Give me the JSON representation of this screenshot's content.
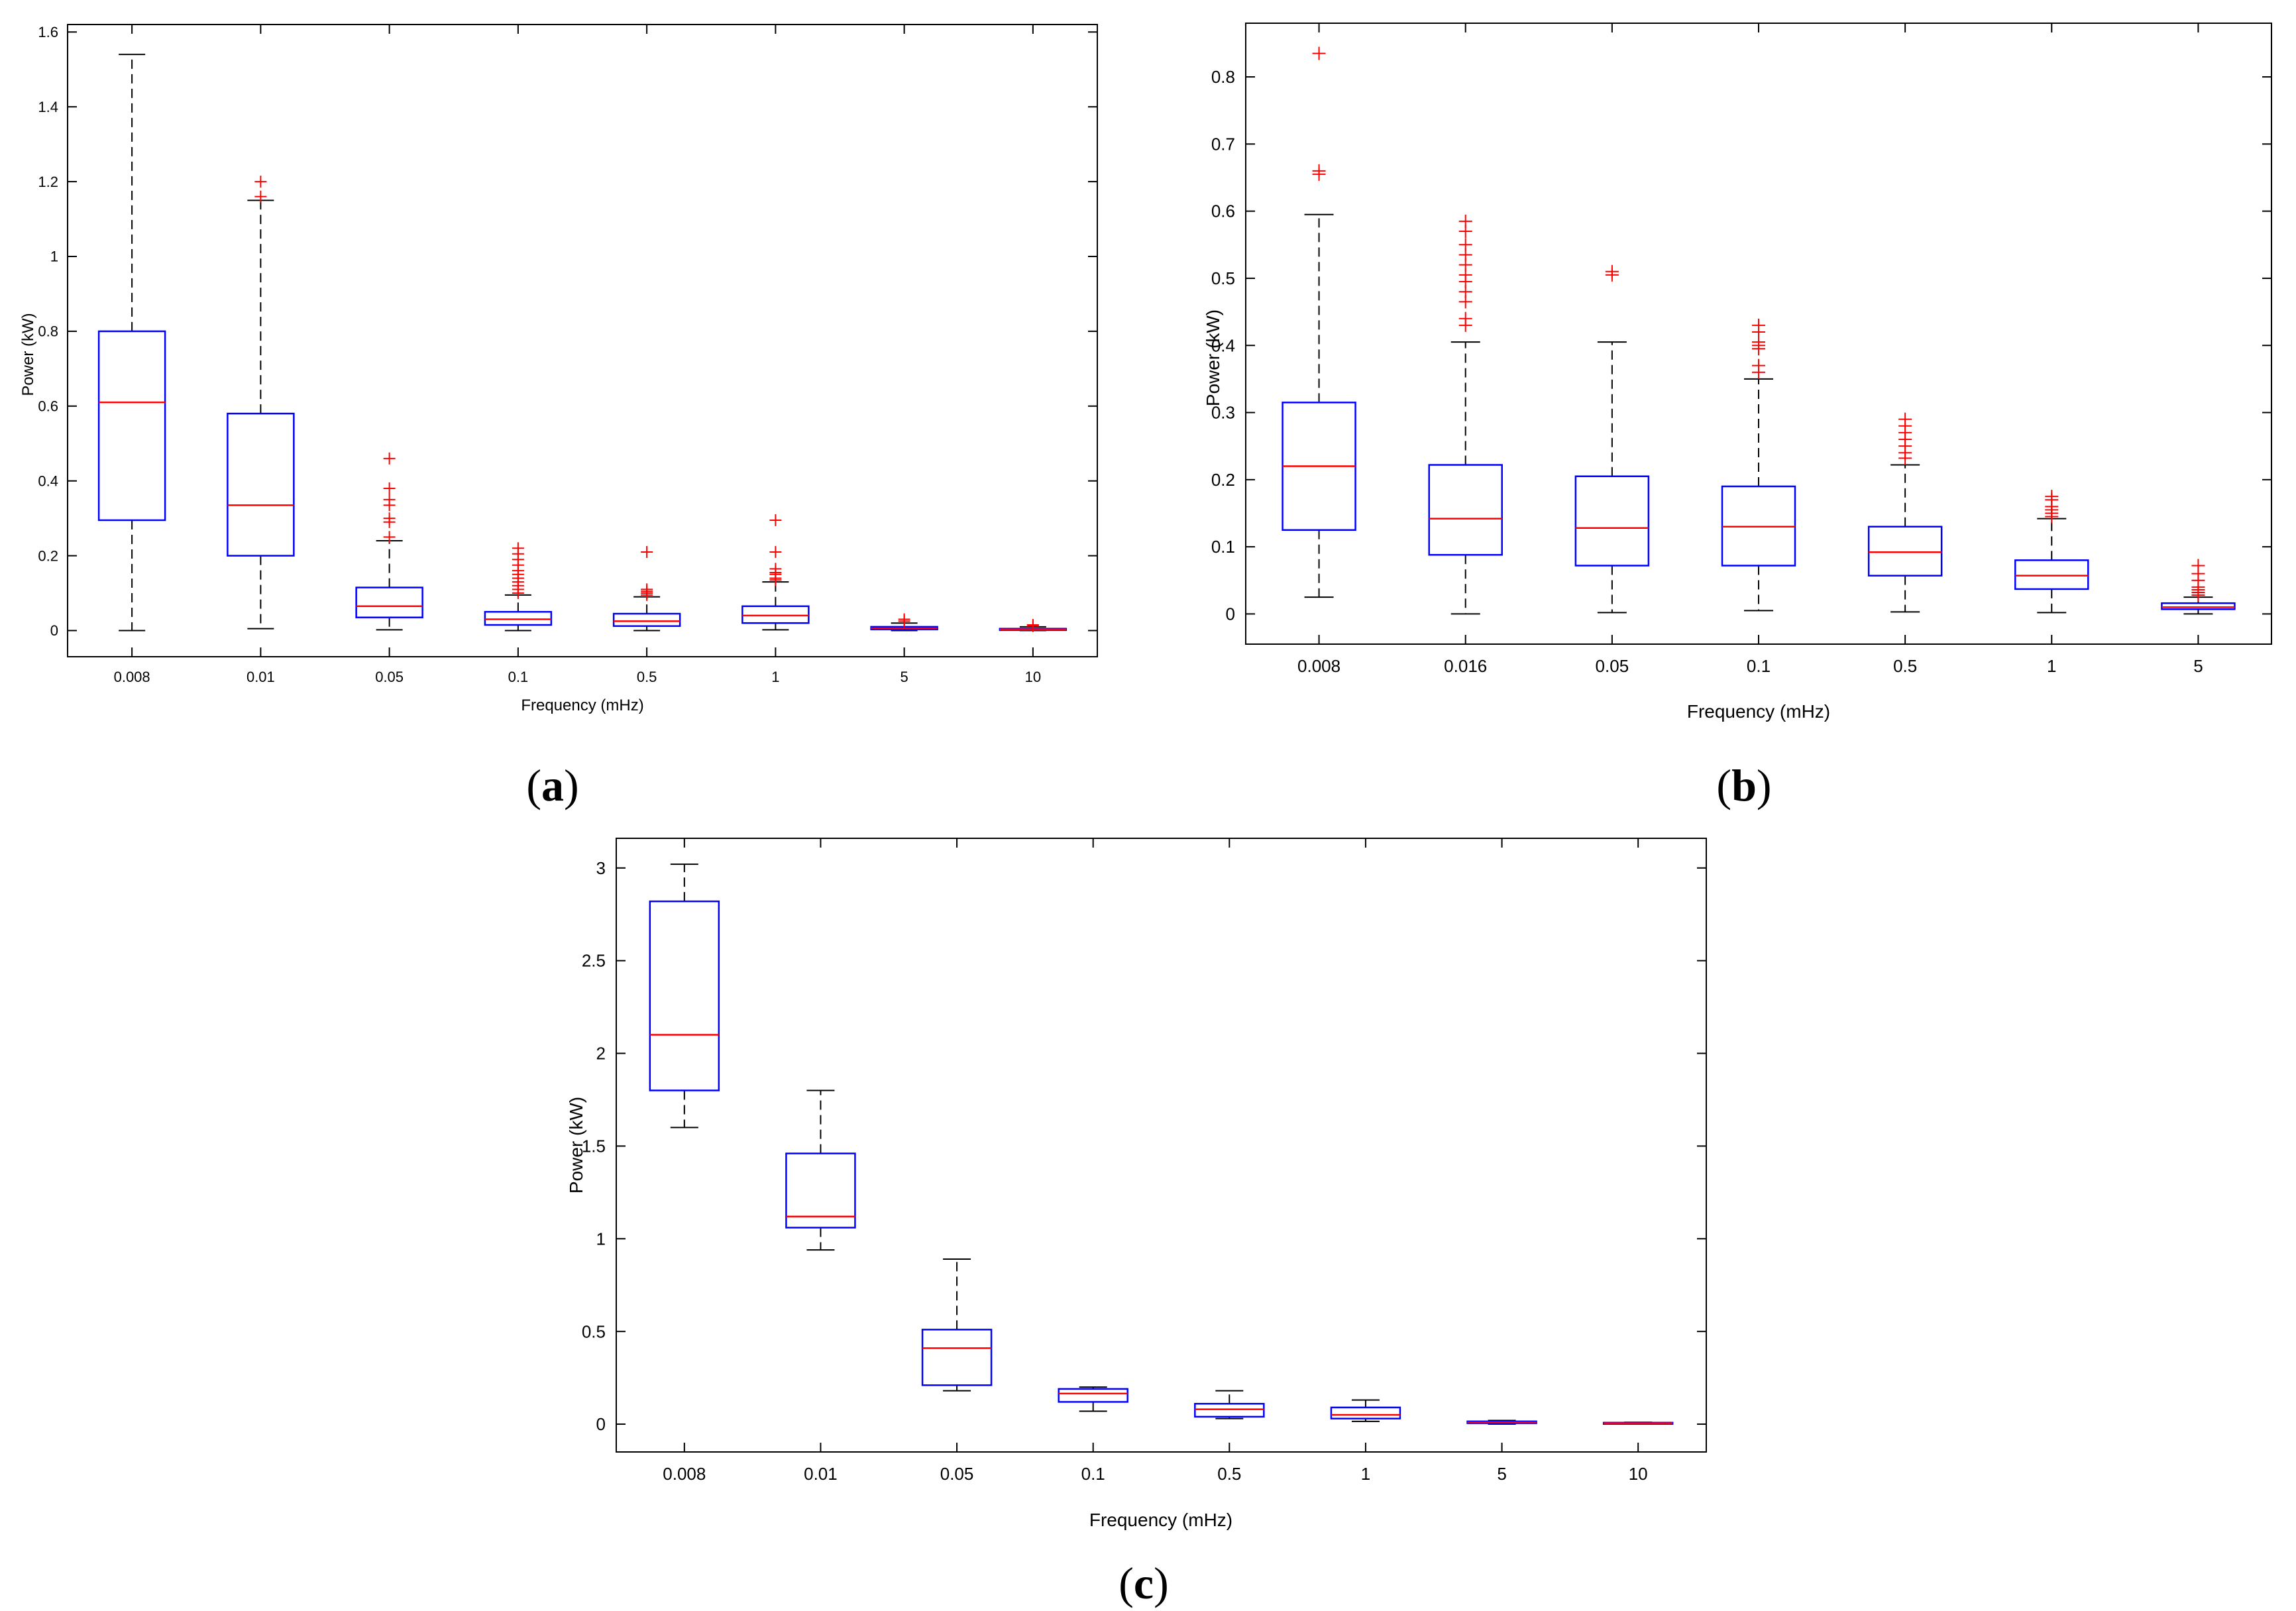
{
  "chart_data": [
    {
      "type": "boxplot",
      "panel_label": "a",
      "xlabel": "Frequency (mHz)",
      "ylabel": "Power (kW)",
      "ylim": [
        -0.07,
        1.62
      ],
      "yticks": [
        0,
        0.2,
        0.4,
        0.6,
        0.8,
        1,
        1.2,
        1.4,
        1.6
      ],
      "ytick_labels": [
        "0",
        "0.2",
        "0.4",
        "0.6",
        "0.8",
        "1",
        "1.2",
        "1.4",
        "1.6"
      ],
      "categories": [
        "0.008",
        "0.01",
        "0.05",
        "0.1",
        "0.5",
        "1",
        "5",
        "10"
      ],
      "boxes": [
        {
          "q1": 0.295,
          "median": 0.61,
          "q3": 0.8,
          "whisker_low": 0.0,
          "whisker_high": 1.54,
          "outliers": []
        },
        {
          "q1": 0.2,
          "median": 0.335,
          "q3": 0.58,
          "whisker_low": 0.005,
          "whisker_high": 1.15,
          "outliers": [
            1.16,
            1.2
          ]
        },
        {
          "q1": 0.035,
          "median": 0.065,
          "q3": 0.115,
          "whisker_low": 0.002,
          "whisker_high": 0.24,
          "outliers": [
            0.25,
            0.29,
            0.3,
            0.335,
            0.35,
            0.38,
            0.46
          ]
        },
        {
          "q1": 0.015,
          "median": 0.03,
          "q3": 0.05,
          "whisker_low": 0.0,
          "whisker_high": 0.095,
          "outliers": [
            0.1,
            0.11,
            0.12,
            0.13,
            0.14,
            0.15,
            0.16,
            0.175,
            0.19,
            0.205,
            0.22
          ]
        },
        {
          "q1": 0.012,
          "median": 0.025,
          "q3": 0.045,
          "whisker_low": 0.0,
          "whisker_high": 0.09,
          "outliers": [
            0.095,
            0.1,
            0.105,
            0.11,
            0.21
          ]
        },
        {
          "q1": 0.02,
          "median": 0.04,
          "q3": 0.065,
          "whisker_low": 0.002,
          "whisker_high": 0.13,
          "outliers": [
            0.135,
            0.14,
            0.15,
            0.155,
            0.165,
            0.21,
            0.295
          ]
        },
        {
          "q1": 0.003,
          "median": 0.006,
          "q3": 0.01,
          "whisker_low": 0.0,
          "whisker_high": 0.02,
          "outliers": [
            0.025,
            0.03
          ]
        },
        {
          "q1": 0.001,
          "median": 0.003,
          "q3": 0.005,
          "whisker_low": 0.0,
          "whisker_high": 0.01,
          "outliers": [
            0.012,
            0.015
          ]
        }
      ]
    },
    {
      "type": "boxplot",
      "panel_label": "b",
      "xlabel": "Frequency (mHz)",
      "ylabel": "Power (kW)",
      "ylim": [
        -0.045,
        0.88
      ],
      "yticks": [
        0,
        0.1,
        0.2,
        0.3,
        0.4,
        0.5,
        0.6,
        0.7,
        0.8
      ],
      "ytick_labels": [
        "0",
        "0.1",
        "0.2",
        "0.3",
        "0.4",
        "0.5",
        "0.6",
        "0.7",
        "0.8"
      ],
      "categories": [
        "0.008",
        "0.016",
        "0.05",
        "0.1",
        "0.5",
        "1",
        "5"
      ],
      "boxes": [
        {
          "q1": 0.125,
          "median": 0.22,
          "q3": 0.315,
          "whisker_low": 0.025,
          "whisker_high": 0.595,
          "outliers": [
            0.655,
            0.66,
            0.835
          ]
        },
        {
          "q1": 0.088,
          "median": 0.142,
          "q3": 0.222,
          "whisker_low": 0.0,
          "whisker_high": 0.405,
          "outliers": [
            0.43,
            0.44,
            0.465,
            0.48,
            0.495,
            0.505,
            0.52,
            0.535,
            0.55,
            0.57,
            0.585
          ]
        },
        {
          "q1": 0.072,
          "median": 0.128,
          "q3": 0.205,
          "whisker_low": 0.002,
          "whisker_high": 0.405,
          "outliers": [
            0.505,
            0.51
          ]
        },
        {
          "q1": 0.072,
          "median": 0.13,
          "q3": 0.19,
          "whisker_low": 0.005,
          "whisker_high": 0.35,
          "outliers": [
            0.36,
            0.37,
            0.395,
            0.4,
            0.405,
            0.42,
            0.43
          ]
        },
        {
          "q1": 0.057,
          "median": 0.092,
          "q3": 0.13,
          "whisker_low": 0.003,
          "whisker_high": 0.222,
          "outliers": [
            0.232,
            0.24,
            0.25,
            0.26,
            0.27,
            0.28,
            0.29
          ]
        },
        {
          "q1": 0.037,
          "median": 0.057,
          "q3": 0.08,
          "whisker_low": 0.002,
          "whisker_high": 0.142,
          "outliers": [
            0.145,
            0.15,
            0.155,
            0.16,
            0.17,
            0.175
          ]
        },
        {
          "q1": 0.007,
          "median": 0.01,
          "q3": 0.016,
          "whisker_low": 0.0,
          "whisker_high": 0.025,
          "outliers": [
            0.028,
            0.032,
            0.036,
            0.04,
            0.05,
            0.06,
            0.072
          ]
        }
      ]
    },
    {
      "type": "boxplot",
      "panel_label": "c",
      "xlabel": "Frequency (mHz)",
      "ylabel": "Power (kW)",
      "ylim": [
        -0.15,
        3.16
      ],
      "yticks": [
        0,
        0.5,
        1,
        1.5,
        2,
        2.5,
        3
      ],
      "ytick_labels": [
        "0",
        "0.5",
        "1",
        "1.5",
        "2",
        "2.5",
        "3"
      ],
      "categories": [
        "0.008",
        "0.01",
        "0.05",
        "0.1",
        "0.5",
        "1",
        "5",
        "10"
      ],
      "boxes": [
        {
          "q1": 1.8,
          "median": 2.1,
          "q3": 2.82,
          "whisker_low": 1.6,
          "whisker_high": 3.02,
          "outliers": []
        },
        {
          "q1": 1.06,
          "median": 1.12,
          "q3": 1.46,
          "whisker_low": 0.94,
          "whisker_high": 1.8,
          "outliers": []
        },
        {
          "q1": 0.21,
          "median": 0.41,
          "q3": 0.51,
          "whisker_low": 0.18,
          "whisker_high": 0.89,
          "outliers": []
        },
        {
          "q1": 0.12,
          "median": 0.165,
          "q3": 0.19,
          "whisker_low": 0.07,
          "whisker_high": 0.2,
          "outliers": []
        },
        {
          "q1": 0.04,
          "median": 0.08,
          "q3": 0.11,
          "whisker_low": 0.03,
          "whisker_high": 0.18,
          "outliers": []
        },
        {
          "q1": 0.03,
          "median": 0.05,
          "q3": 0.09,
          "whisker_low": 0.015,
          "whisker_high": 0.13,
          "outliers": []
        },
        {
          "q1": 0.005,
          "median": 0.01,
          "q3": 0.015,
          "whisker_low": 0.0,
          "whisker_high": 0.02,
          "outliers": []
        },
        {
          "q1": 0.002,
          "median": 0.005,
          "q3": 0.008,
          "whisker_low": 0.0,
          "whisker_high": 0.01,
          "outliers": []
        }
      ]
    }
  ],
  "colors": {
    "box": "#0000ff",
    "median": "#ff0000",
    "whisker": "#000000",
    "outlier": "#ff0000",
    "axis": "#000000"
  }
}
